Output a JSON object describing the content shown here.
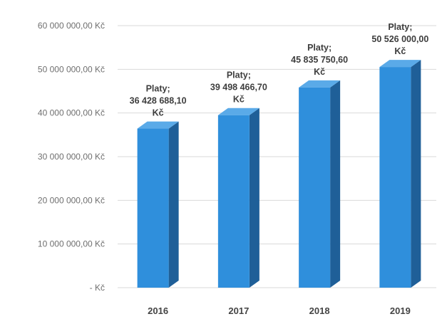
{
  "chart_data": {
    "type": "bar",
    "categories": [
      "2016",
      "2017",
      "2018",
      "2019"
    ],
    "series": [
      {
        "values": [
          36428688.1,
          39498466.7,
          45835750.6,
          50526000.0
        ]
      }
    ],
    "data_labels": [
      [
        "Platy;",
        "36 428 688,10",
        "Kč"
      ],
      [
        "Platy;",
        "39 498 466,70",
        "Kč"
      ],
      [
        "Platy;",
        "45 835 750,60",
        "Kč"
      ],
      [
        "Platy;",
        "50 526 000,00",
        "Kč"
      ]
    ],
    "y_ticks": [
      {
        "value": 0,
        "label": "-  Kč"
      },
      {
        "value": 10000000,
        "label": "10 000 000,00 Kč"
      },
      {
        "value": 20000000,
        "label": "20 000 000,00 Kč"
      },
      {
        "value": 30000000,
        "label": "30 000 000,00 Kč"
      },
      {
        "value": 40000000,
        "label": "40 000 000,00 Kč"
      },
      {
        "value": 50000000,
        "label": "50 000 000,00 Kč"
      },
      {
        "value": 60000000,
        "label": "60 000 000,00 Kč"
      }
    ],
    "ylim": [
      0,
      60000000
    ],
    "grid": true,
    "legend": "none",
    "style": "3d-column",
    "colors": {
      "bar_front": "#2f8fdc",
      "bar_side": "#1f5f98",
      "bar_top": "#5aaae8",
      "grid": "#d9d9d9"
    }
  }
}
